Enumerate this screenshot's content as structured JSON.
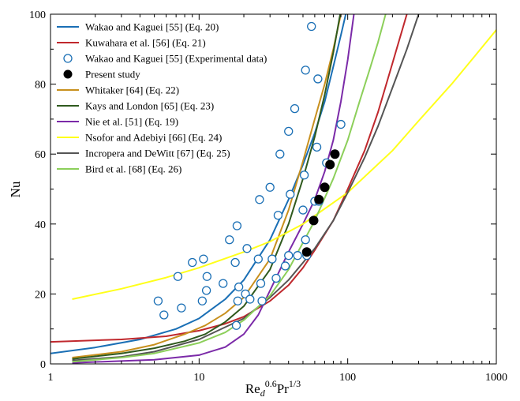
{
  "chart_data": {
    "type": "line",
    "title": "",
    "xlabel": {
      "base": "Re",
      "sub": "d",
      "sup1": "0.6",
      "mid": "Pr",
      "sup2": "1/3"
    },
    "ylabel": "Nu",
    "xscale": "log",
    "xlim": [
      1,
      1000
    ],
    "ylim": [
      0,
      100
    ],
    "xticks": [
      1,
      10,
      100,
      1000
    ],
    "xtick_labels": [
      "1",
      "10",
      "100",
      "1000"
    ],
    "yticks": [
      0,
      20,
      40,
      60,
      80,
      100
    ],
    "ytick_labels": [
      "0",
      "20",
      "40",
      "60",
      "80",
      "100"
    ],
    "grid": false,
    "legend_position": "top-left",
    "series": [
      {
        "name": "Wakao and Kaguei [55] (Eq. 20)",
        "kind": "line",
        "color": "#1a6fb5",
        "x": [
          1,
          2,
          4,
          7,
          10,
          15,
          20,
          30,
          40,
          50,
          60,
          70,
          80,
          90,
          97
        ],
        "y": [
          3,
          4.7,
          7,
          10,
          13,
          18.5,
          24,
          35.5,
          47,
          57,
          66,
          75,
          85,
          94,
          100
        ]
      },
      {
        "name": "Kuwahara et al. [56] (Eq. 21)",
        "kind": "line",
        "color": "#c0282d",
        "x": [
          1,
          3,
          6,
          10,
          15,
          20,
          30,
          40,
          50,
          60,
          80,
          100,
          130,
          160,
          200,
          250
        ],
        "y": [
          6.3,
          7,
          7.9,
          9.5,
          11.5,
          13.5,
          18,
          22.5,
          27.5,
          32.5,
          41,
          50,
          61,
          72,
          86,
          100
        ]
      },
      {
        "name": "Wakao and Kaguei [55] (Experimental data)",
        "kind": "scatter",
        "color": "#1a6fb5",
        "x": [
          5.3,
          5.8,
          7.2,
          7.6,
          9,
          10.5,
          10.7,
          11.2,
          11.3,
          14.5,
          16,
          17.5,
          17.8,
          18,
          18.2,
          18.5,
          20.5,
          21,
          22,
          25,
          25.5,
          26,
          26.5,
          30,
          31,
          33,
          34,
          35,
          38,
          40,
          40,
          41,
          44,
          46,
          50,
          51,
          52,
          52,
          53,
          57,
          60,
          62,
          63,
          64,
          72,
          90
        ],
        "y": [
          18,
          14,
          25,
          16,
          29,
          18,
          30,
          21,
          25,
          23,
          35.5,
          29,
          11,
          39.5,
          18,
          22,
          20,
          33,
          18.5,
          30,
          47,
          23,
          18,
          50.5,
          30,
          24.5,
          42.5,
          60,
          28,
          31,
          66.5,
          48.5,
          73,
          31,
          44,
          54,
          35.5,
          84,
          31,
          96.5,
          46.5,
          62,
          81.5,
          46.5,
          57.5,
          68.5
        ]
      },
      {
        "name": "Present study",
        "kind": "scatter-filled",
        "color": "#000000",
        "x": [
          53,
          59,
          64,
          70,
          76,
          82
        ],
        "y": [
          32,
          41,
          47,
          50.5,
          57,
          60
        ]
      },
      {
        "name": "Whitaker [64] (Eq. 22)",
        "kind": "line",
        "color": "#c8901e",
        "x": [
          1.4,
          3,
          5,
          8,
          11,
          15,
          20,
          30,
          40,
          50,
          60,
          70,
          80,
          90
        ],
        "y": [
          1.8,
          3.5,
          5.5,
          8.5,
          11,
          14.5,
          19,
          30,
          44,
          58,
          70,
          80,
          90,
          100
        ]
      },
      {
        "name": "Kays and London [65] (Eq. 23)",
        "kind": "line",
        "color": "#2f5a1e",
        "x": [
          1.4,
          3,
          5,
          8,
          11,
          15,
          20,
          30,
          40,
          50,
          60,
          70,
          80,
          89
        ],
        "y": [
          1.4,
          3,
          4.5,
          6.5,
          8.5,
          12,
          16.5,
          27,
          40,
          53,
          65,
          77,
          89,
          100
        ]
      },
      {
        "name": "Nie et al. [51] (Eq. 19)",
        "kind": "line",
        "color": "#7b2aa8",
        "x": [
          1.4,
          5,
          10,
          15,
          20,
          25,
          30,
          40,
          50,
          60,
          70,
          80,
          90,
          100,
          110
        ],
        "y": [
          0.3,
          1.2,
          2.5,
          4.8,
          8.5,
          14,
          21,
          32,
          40,
          47,
          55,
          64,
          75,
          87,
          100
        ]
      },
      {
        "name": "Nsofor and Adebiyi [66] (Eq. 24)",
        "kind": "line",
        "color": "#ffff1a",
        "x": [
          1.4,
          3,
          6,
          10,
          20,
          30,
          50,
          100,
          200,
          300,
          500,
          700,
          1000
        ],
        "y": [
          18.5,
          21.5,
          24.7,
          27.5,
          32,
          35,
          40,
          49,
          61,
          69.5,
          80,
          87.5,
          95.5
        ]
      },
      {
        "name": "Incropera and DeWitt [67] (Eq. 25)",
        "kind": "line",
        "color": "#555555",
        "x": [
          1.4,
          3,
          5,
          10,
          20,
          30,
          40,
          60,
          80,
          100,
          130,
          160,
          200,
          250,
          300
        ],
        "y": [
          1,
          2,
          3.5,
          7,
          13,
          19,
          24,
          33,
          41,
          49,
          59,
          68,
          79,
          90,
          100
        ]
      },
      {
        "name": "Bird et al. [68] (Eq. 26)",
        "kind": "line",
        "color": "#8ccf5a",
        "x": [
          1.4,
          3,
          5,
          10,
          15,
          20,
          30,
          40,
          60,
          80,
          100,
          120,
          140,
          160,
          180
        ],
        "y": [
          0.6,
          1.8,
          3,
          6,
          9,
          12.5,
          19.5,
          27,
          41,
          53,
          64,
          75,
          84,
          92,
          100
        ]
      }
    ]
  }
}
